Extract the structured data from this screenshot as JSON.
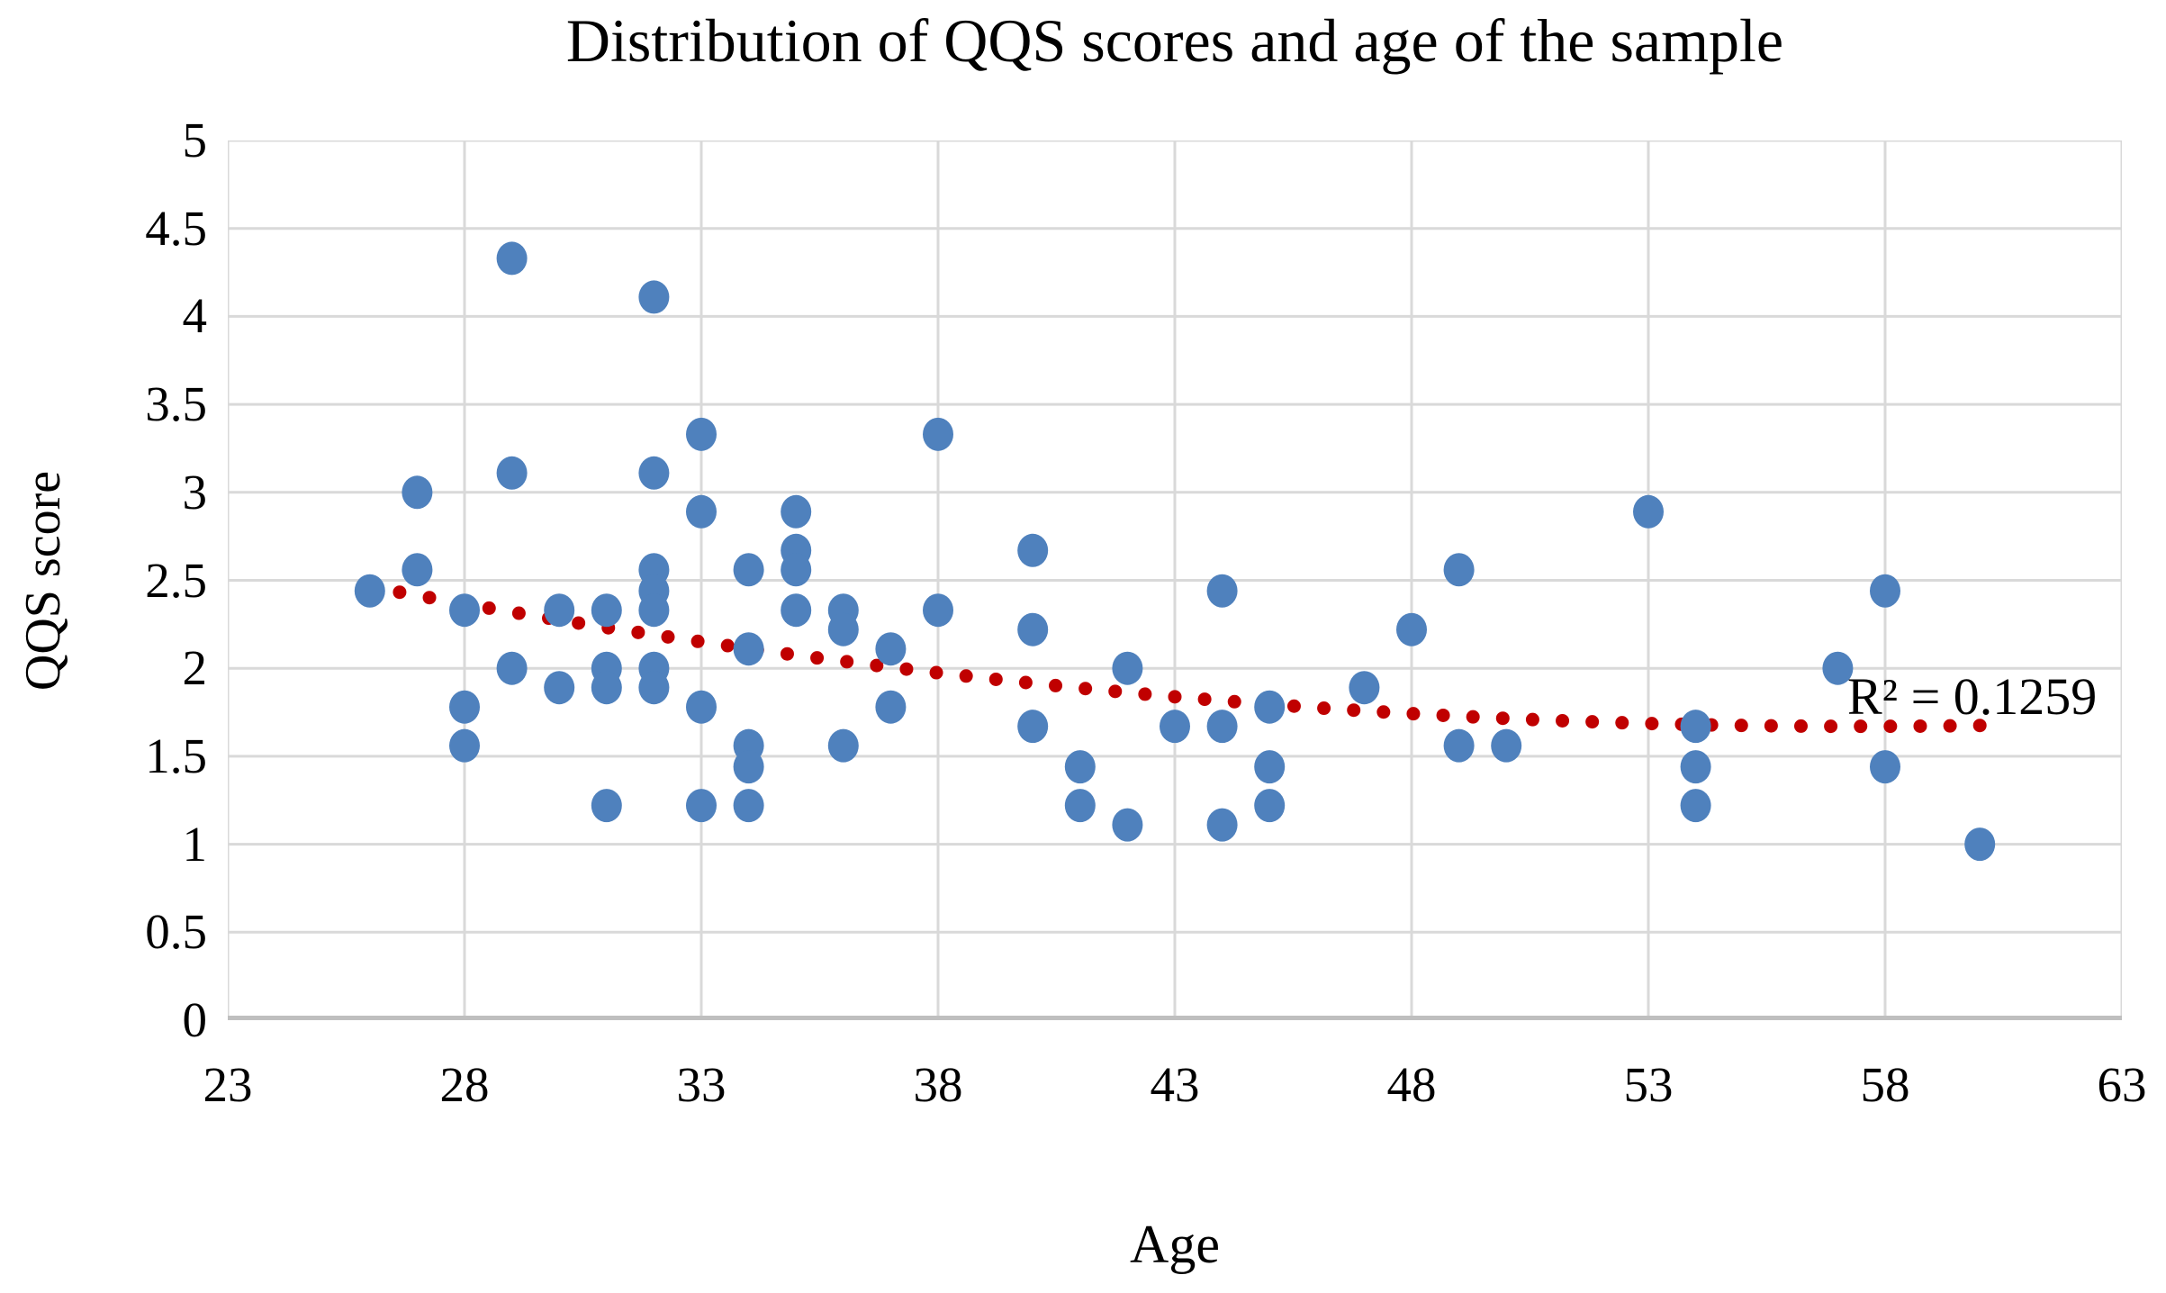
{
  "title": "Distribution of QQS scores and age of the sample",
  "x_axis": {
    "label": "Age",
    "min": 23,
    "max": 63,
    "tick_step": 5,
    "ticks": [
      "23",
      "28",
      "33",
      "38",
      "43",
      "48",
      "53",
      "58",
      "63"
    ]
  },
  "y_axis": {
    "label": "QQS score",
    "min": 0,
    "max": 5,
    "tick_step": 0.5,
    "ticks": [
      "0",
      "0.5",
      "1",
      "1.5",
      "2",
      "2.5",
      "3",
      "3.5",
      "4",
      "4.5",
      "5"
    ]
  },
  "annotation": {
    "r_squared_label": "R² = 0.1259"
  },
  "colors": {
    "marker": "#4F81BD",
    "trendline": "#C00000",
    "gridline": "#D9D9D9",
    "axis_line": "#BFBFBF",
    "text": "#000000",
    "background": "#FFFFFF"
  },
  "chart_data": {
    "type": "scatter",
    "title": "Distribution of QQS scores and age of the sample",
    "xlabel": "Age",
    "ylabel": "QQS score",
    "xlim": [
      23,
      63
    ],
    "ylim": [
      0,
      5
    ],
    "grid": true,
    "legend": false,
    "points": [
      [
        26,
        2.44
      ],
      [
        27,
        3.0
      ],
      [
        27,
        2.56
      ],
      [
        28,
        2.33
      ],
      [
        28,
        1.78
      ],
      [
        28,
        1.56
      ],
      [
        29,
        4.33
      ],
      [
        29,
        3.11
      ],
      [
        29,
        2.0
      ],
      [
        30,
        2.33
      ],
      [
        30,
        1.89
      ],
      [
        31,
        2.33
      ],
      [
        31,
        2.0
      ],
      [
        31,
        1.89
      ],
      [
        31,
        1.22
      ],
      [
        32,
        4.11
      ],
      [
        32,
        3.11
      ],
      [
        32,
        2.56
      ],
      [
        32,
        2.44
      ],
      [
        32,
        2.33
      ],
      [
        32,
        2.0
      ],
      [
        32,
        1.89
      ],
      [
        33,
        3.33
      ],
      [
        33,
        2.89
      ],
      [
        33,
        1.78
      ],
      [
        33,
        1.22
      ],
      [
        34,
        2.56
      ],
      [
        34,
        2.11
      ],
      [
        34,
        1.56
      ],
      [
        34,
        1.44
      ],
      [
        34,
        1.22
      ],
      [
        35,
        2.89
      ],
      [
        35,
        2.67
      ],
      [
        35,
        2.56
      ],
      [
        35,
        2.33
      ],
      [
        36,
        2.33
      ],
      [
        36,
        2.22
      ],
      [
        36,
        1.56
      ],
      [
        37,
        2.11
      ],
      [
        37,
        1.78
      ],
      [
        38,
        3.33
      ],
      [
        38,
        2.33
      ],
      [
        40,
        2.67
      ],
      [
        40,
        2.22
      ],
      [
        40,
        1.67
      ],
      [
        41,
        1.44
      ],
      [
        41,
        1.22
      ],
      [
        42,
        2.0
      ],
      [
        42,
        1.11
      ],
      [
        43,
        1.67
      ],
      [
        44,
        2.44
      ],
      [
        44,
        1.67
      ],
      [
        44,
        1.11
      ],
      [
        45,
        1.78
      ],
      [
        45,
        1.44
      ],
      [
        45,
        1.22
      ],
      [
        47,
        1.89
      ],
      [
        48,
        2.22
      ],
      [
        49,
        2.56
      ],
      [
        49,
        1.56
      ],
      [
        50,
        1.56
      ],
      [
        53,
        2.89
      ],
      [
        54,
        1.67
      ],
      [
        54,
        1.44
      ],
      [
        54,
        1.22
      ],
      [
        57,
        2.0
      ],
      [
        58,
        2.44
      ],
      [
        58,
        1.44
      ],
      [
        60,
        1.0
      ]
    ],
    "trendline": {
      "type": "polynomial",
      "order": 2,
      "style": "dotted",
      "x_start": 26,
      "x_end": 60,
      "quadratic": {
        "a": 0.0008,
        "vertex_x": 57.5,
        "min_value": 1.67
      },
      "r_squared": 0.1259
    }
  }
}
